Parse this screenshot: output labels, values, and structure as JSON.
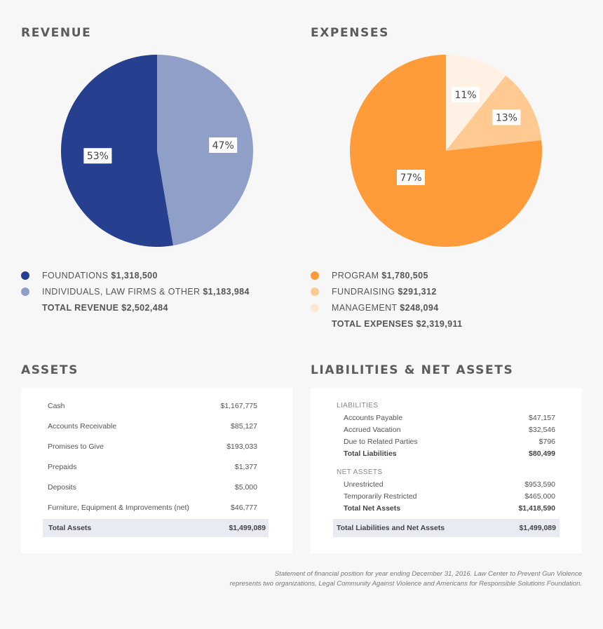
{
  "colors": {
    "foundations": "#26408f",
    "individuals": "#8f9fc8",
    "program": "#ff9b38",
    "fundraising": "#ffc992",
    "management": "#fff1e4"
  },
  "chart_data": [
    {
      "type": "pie",
      "title": "REVENUE",
      "slices": [
        {
          "label": "FOUNDATIONS",
          "amount": "$1,318,500",
          "value": 1318500,
          "percent_label": "53%",
          "color": "#26408f"
        },
        {
          "label": "INDIVIDUALS, LAW FIRMS & OTHER",
          "amount": "$1,183,984",
          "value": 1183984,
          "percent_label": "47%",
          "color": "#8f9fc8"
        }
      ],
      "total_label": "TOTAL REVENUE $2,502,484"
    },
    {
      "type": "pie",
      "title": "EXPENSES",
      "slices": [
        {
          "label": "PROGRAM",
          "amount": "$1,780,505",
          "value": 1780505,
          "percent_label": "77%",
          "color": "#ff9b38"
        },
        {
          "label": "FUNDRAISING",
          "amount": "$291,312",
          "value": 291312,
          "percent_label": "13%",
          "color": "#ffc992"
        },
        {
          "label": "MANAGEMENT",
          "amount": "$248,094",
          "value": 248094,
          "percent_label": "11%",
          "color": "#fff1e4"
        }
      ],
      "total_label": "TOTAL EXPENSES $2,319,911"
    },
    {
      "type": "table",
      "title": "ASSETS",
      "rows": [
        {
          "label": "Cash",
          "value": "$1,167,775"
        },
        {
          "label": "Accounts Receivable",
          "value": "$85,127"
        },
        {
          "label": "Promises to Give",
          "value": "$193,033"
        },
        {
          "label": "Prepaids",
          "value": "$1,377"
        },
        {
          "label": "Deposits",
          "value": "$5,000"
        },
        {
          "label": "Furniture, Equipment & Improvements (net)",
          "value": "$46,777"
        }
      ],
      "total": {
        "label": "Total Assets",
        "value": "$1,499,089"
      }
    },
    {
      "type": "table",
      "title": "LIABILITIES & NET ASSETS",
      "sections": [
        {
          "heading": "LIABILITIES",
          "rows": [
            {
              "label": "Accounts Payable",
              "value": "$47,157"
            },
            {
              "label": "Accrued Vacation",
              "value": "$32,546"
            },
            {
              "label": "Due to Related Parties",
              "value": "$796"
            }
          ],
          "total": {
            "label": "Total Liabilities",
            "value": "$80,499"
          }
        },
        {
          "heading": "NET ASSETS",
          "rows": [
            {
              "label": "Unrestricted",
              "value": "$953,590"
            },
            {
              "label": "Temporarily Restricted",
              "value": "$465,000"
            }
          ],
          "total": {
            "label": "Total Net Assets",
            "value": "$1,418,590"
          }
        }
      ],
      "grand_total": {
        "label": "Total Liabilities and Net Assets",
        "value": "$1,499,089"
      }
    }
  ],
  "footnote": {
    "line1": "Statement of financial position for year ending December 31, 2016. Law Center to Prevent Gun Violence",
    "line2": "represents two organizations, Legal Community Against Violence and Americans for Responsible Solutions Foundation."
  }
}
